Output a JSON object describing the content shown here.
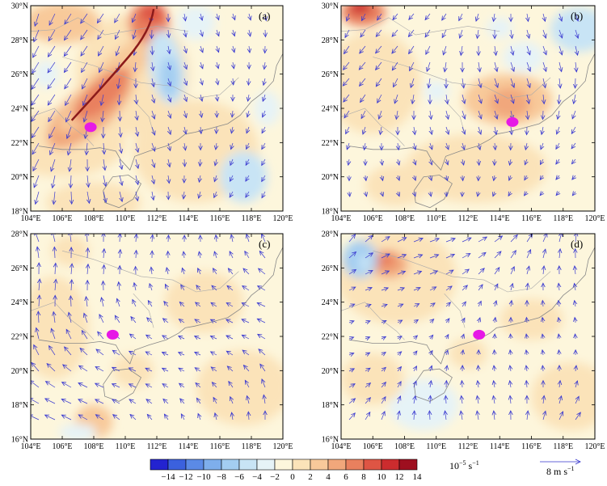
{
  "panels": [
    {
      "letter": "(a)",
      "lat_ticks": [
        "18°N",
        "20°N",
        "22°N",
        "24°N",
        "26°N",
        "28°N",
        "30°N"
      ],
      "lon_ticks": [
        "104°E",
        "106°E",
        "108°E",
        "110°E",
        "112°E",
        "114°E",
        "116°E",
        "118°E",
        "120°E"
      ],
      "marker_lonlat": [
        107.8,
        22.9
      ],
      "trough_line": true
    },
    {
      "letter": "(b)",
      "lat_ticks": [
        "18°N",
        "20°N",
        "22°N",
        "24°N",
        "26°N",
        "28°N",
        "30°N"
      ],
      "lon_ticks": [
        "104°E",
        "106°E",
        "108°E",
        "110°E",
        "112°E",
        "114°E",
        "116°E",
        "118°E",
        "120°E"
      ],
      "marker_lonlat": [
        114.8,
        23.2
      ],
      "trough_line": false
    },
    {
      "letter": "(c)",
      "lat_ticks": [
        "16°N",
        "18°N",
        "20°N",
        "22°N",
        "24°N",
        "26°N",
        "28°N"
      ],
      "lon_ticks": [
        "104°E",
        "106°E",
        "108°E",
        "110°E",
        "112°E",
        "114°E",
        "116°E",
        "118°E",
        "120°E"
      ],
      "marker_lonlat": [
        109.2,
        22.1
      ],
      "trough_line": false
    },
    {
      "letter": "(d)",
      "lat_ticks": [
        "16°N",
        "18°N",
        "20°N",
        "22°N",
        "24°N",
        "26°N",
        "28°N"
      ],
      "lon_ticks": [
        "104°E",
        "106°E",
        "108°E",
        "110°E",
        "112°E",
        "114°E",
        "116°E",
        "118°E",
        "120°E"
      ],
      "marker_lonlat": [
        112.7,
        22.1
      ],
      "trough_line": false
    }
  ],
  "colorbar": {
    "levels": [
      "−14",
      "−12",
      "−10",
      "−8",
      "−6",
      "−4",
      "−2",
      "0",
      "2",
      "4",
      "6",
      "8",
      "10",
      "12",
      "14"
    ],
    "colors": [
      "#2323d0",
      "#3b61de",
      "#5b8ae6",
      "#7eaeec",
      "#a3cdf1",
      "#c8e4f5",
      "#e6f3f7",
      "#fdf6dc",
      "#fbe3b9",
      "#f8c99a",
      "#f1a77b",
      "#e9805e",
      "#de5544",
      "#cc2c2e",
      "#9e0f1f"
    ],
    "unit_prefix": "10",
    "unit_exp": "−5",
    "unit_main": " s",
    "unit_exp2": "−1"
  },
  "ref_vector": {
    "label_main": "8 m s",
    "label_exp": "−1",
    "color": "#3333cc"
  },
  "colors": {
    "marker": "#e619e6",
    "vector": "#3a3ad0",
    "coast": "#888888",
    "trough": "#8b1a1a"
  }
}
